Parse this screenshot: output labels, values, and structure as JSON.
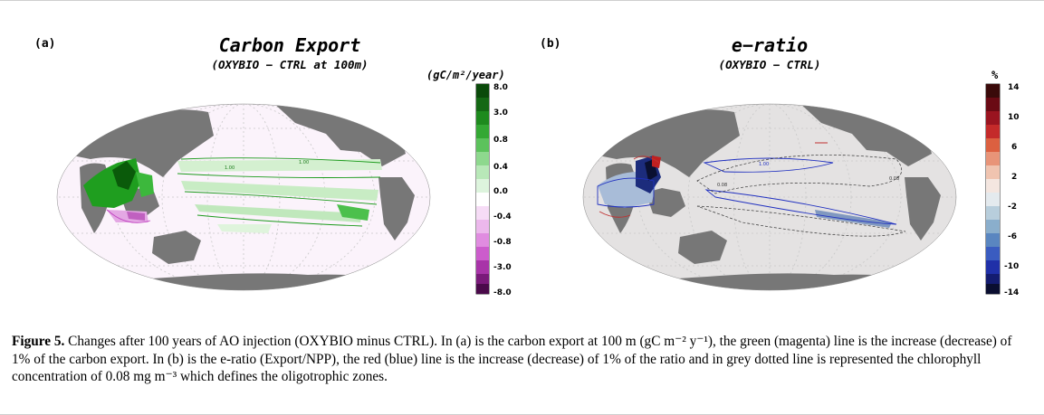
{
  "panel_a": {
    "label": "(a)",
    "title": "Carbon Export",
    "subtitle": "(OXYBIO − CTRL at 100m)",
    "unit": "(gC/m²/year)",
    "colorbar_ticks": [
      "8.0",
      "3.0",
      "0.8",
      "0.4",
      "0.0",
      "-0.4",
      "-0.8",
      "-3.0",
      "-8.0"
    ],
    "contour_label": "1.00",
    "colors": {
      "positive": "#1a9a1a",
      "negative": "#c040c0"
    }
  },
  "panel_b": {
    "label": "(b)",
    "title": "e−ratio",
    "subtitle": "(OXYBIO − CTRL)",
    "unit": "%",
    "colorbar_ticks": [
      "14",
      "10",
      "6",
      "2",
      "-2",
      "-6",
      "-10",
      "-14"
    ],
    "contour_labels": [
      "1.00",
      "0.08"
    ],
    "colors": {
      "positive": "#c03030",
      "negative": "#2030c0"
    }
  },
  "caption": {
    "figure_label": "Figure 5.",
    "text": " Changes after 100 years of AO injection (OXYBIO minus CTRL). In (a) is the carbon export at 100 m (gC m⁻² y⁻¹), the green (magenta) line is the increase (decrease) of 1% of the carbon export. In (b) is the e-ratio (Export/NPP), the red (blue) line is the increase (decrease) of 1% of the ratio and in grey dotted line is represented the chlorophyll concentration of 0.08 mg m⁻³ which defines the oligotrophic zones."
  }
}
